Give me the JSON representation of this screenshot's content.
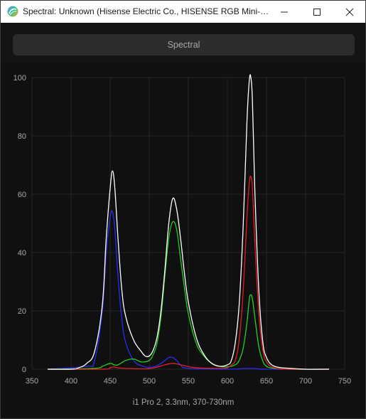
{
  "window": {
    "title": "Spectral: Unknown (Hisense Electric Co., HISENSE RGB Mini-LED...",
    "minimize_icon": "minimize-icon",
    "maximize_icon": "maximize-icon",
    "close_icon": "close-icon"
  },
  "section": {
    "label": "Spectral"
  },
  "chart_data": {
    "type": "line",
    "caption": "i1 Pro 2, 3.3nm, 370-730nm",
    "xlim": [
      350,
      750
    ],
    "ylim": [
      0,
      100
    ],
    "x_ticks": [
      "350",
      "400",
      "450",
      "500",
      "550",
      "600",
      "650",
      "700",
      "750"
    ],
    "y_ticks": [
      "0",
      "20",
      "40",
      "60",
      "80",
      "100"
    ],
    "grid": true,
    "series": [
      {
        "key": "white",
        "color": "#ffffff",
        "x": [
          370,
          400,
          410,
          420,
          430,
          440,
          445,
          450,
          453,
          456,
          460,
          465,
          470,
          480,
          490,
          495,
          500,
          505,
          510,
          515,
          520,
          525,
          530,
          535,
          540,
          545,
          550,
          560,
          570,
          580,
          590,
          600,
          605,
          610,
          615,
          620,
          625,
          628,
          630,
          632,
          635,
          640,
          645,
          650,
          660,
          680,
          700,
          730
        ],
        "y": [
          0,
          0,
          0.5,
          2,
          6,
          22,
          45,
          62,
          68,
          62,
          45,
          27,
          18,
          10,
          6,
          4.5,
          4.5,
          6.5,
          11,
          20,
          34,
          50,
          58.5,
          55,
          45,
          33,
          23,
          11,
          5,
          2,
          1,
          1.5,
          3,
          9,
          22,
          48,
          85,
          99,
          100,
          92,
          62,
          28,
          10,
          4,
          1,
          0.3,
          0,
          0
        ]
      },
      {
        "key": "blue",
        "color": "#2b2bf0",
        "x": [
          370,
          420,
          430,
          440,
          445,
          450,
          453,
          456,
          460,
          465,
          470,
          480,
          490,
          500,
          510,
          520,
          525,
          530,
          535,
          540,
          550,
          600,
          630,
          650,
          730
        ],
        "y": [
          0,
          1,
          3,
          20,
          40,
          52,
          54,
          48,
          32,
          17,
          9,
          3,
          1.2,
          0.6,
          1.2,
          3,
          4,
          4,
          3,
          1.5,
          0.3,
          0,
          0.3,
          0,
          0
        ]
      },
      {
        "key": "green",
        "color": "#22d022",
        "x": [
          370,
          430,
          440,
          450,
          455,
          460,
          470,
          480,
          490,
          500,
          505,
          510,
          515,
          520,
          525,
          530,
          535,
          540,
          545,
          550,
          560,
          570,
          580,
          590,
          600,
          610,
          615,
          620,
          625,
          628,
          630,
          632,
          635,
          640,
          645,
          650,
          660,
          680,
          730
        ],
        "y": [
          0,
          0.3,
          1,
          2,
          1.5,
          1.5,
          3,
          3.5,
          2.5,
          3,
          5,
          9,
          18,
          32,
          45,
          50.5,
          48,
          38,
          28,
          19,
          9,
          4.5,
          2,
          1,
          0.8,
          1.5,
          3,
          7,
          16,
          24,
          25.5,
          24,
          18,
          8,
          3,
          1,
          0.3,
          0,
          0
        ]
      },
      {
        "key": "red",
        "color": "#e02020",
        "x": [
          370,
          440,
          450,
          455,
          460,
          470,
          500,
          520,
          530,
          540,
          560,
          590,
          600,
          605,
          610,
          615,
          620,
          625,
          628,
          630,
          632,
          635,
          640,
          645,
          650,
          660,
          680,
          730
        ],
        "y": [
          0,
          0,
          0.5,
          0.8,
          0.5,
          0.3,
          0.2,
          1.5,
          2,
          1.5,
          0.5,
          0.3,
          0.5,
          1.5,
          3,
          10,
          26,
          52,
          64,
          66,
          62,
          44,
          20,
          7,
          2.5,
          0.5,
          0,
          0
        ]
      }
    ]
  }
}
